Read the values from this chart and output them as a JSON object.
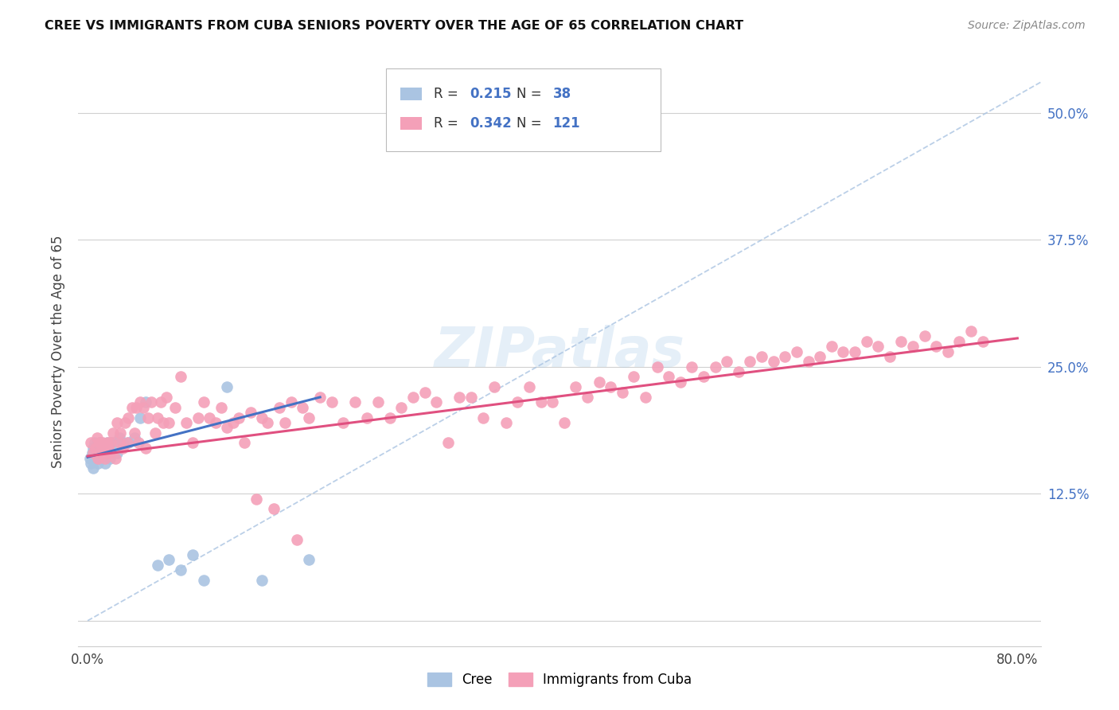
{
  "title": "CREE VS IMMIGRANTS FROM CUBA SENIORS POVERTY OVER THE AGE OF 65 CORRELATION CHART",
  "source": "Source: ZipAtlas.com",
  "ylabel": "Seniors Poverty Over the Age of 65",
  "cree_color": "#aac4e2",
  "cuba_color": "#f4a0b8",
  "cree_line_color": "#4472c4",
  "cuba_line_color": "#e05080",
  "diag_line_color": "#aac4e2",
  "legend_R_color": "#4472c4",
  "legend_N_color": "#4472c4",
  "cree_R": 0.215,
  "cree_N": 38,
  "cuba_R": 0.342,
  "cuba_N": 121,
  "ytick_vals": [
    0.0,
    0.125,
    0.25,
    0.375,
    0.5
  ],
  "ytick_labels": [
    "",
    "12.5%",
    "25.0%",
    "37.5%",
    "50.0%"
  ],
  "xtick_vals": [
    0.0,
    0.1,
    0.2,
    0.3,
    0.4,
    0.5,
    0.6,
    0.7,
    0.8
  ],
  "xtick_labels": [
    "0.0%",
    "",
    "",
    "",
    "",
    "",
    "",
    "",
    "80.0%"
  ],
  "cree_x": [
    0.002,
    0.003,
    0.004,
    0.005,
    0.005,
    0.006,
    0.007,
    0.008,
    0.009,
    0.01,
    0.01,
    0.011,
    0.012,
    0.013,
    0.014,
    0.015,
    0.015,
    0.016,
    0.017,
    0.018,
    0.019,
    0.02,
    0.022,
    0.025,
    0.027,
    0.03,
    0.035,
    0.04,
    0.045,
    0.05,
    0.06,
    0.07,
    0.08,
    0.09,
    0.1,
    0.12,
    0.15,
    0.19
  ],
  "cree_y": [
    0.16,
    0.155,
    0.165,
    0.17,
    0.15,
    0.175,
    0.165,
    0.17,
    0.155,
    0.175,
    0.16,
    0.175,
    0.165,
    0.17,
    0.165,
    0.17,
    0.155,
    0.165,
    0.175,
    0.165,
    0.16,
    0.175,
    0.175,
    0.165,
    0.18,
    0.175,
    0.175,
    0.18,
    0.2,
    0.215,
    0.055,
    0.06,
    0.05,
    0.065,
    0.04,
    0.23,
    0.04,
    0.06
  ],
  "cuba_x": [
    0.003,
    0.005,
    0.007,
    0.008,
    0.009,
    0.01,
    0.011,
    0.012,
    0.013,
    0.015,
    0.016,
    0.017,
    0.018,
    0.019,
    0.02,
    0.022,
    0.024,
    0.025,
    0.027,
    0.028,
    0.03,
    0.032,
    0.034,
    0.035,
    0.038,
    0.04,
    0.042,
    0.044,
    0.045,
    0.048,
    0.05,
    0.052,
    0.055,
    0.058,
    0.06,
    0.063,
    0.065,
    0.068,
    0.07,
    0.075,
    0.08,
    0.085,
    0.09,
    0.095,
    0.1,
    0.105,
    0.11,
    0.115,
    0.12,
    0.125,
    0.13,
    0.135,
    0.14,
    0.145,
    0.15,
    0.155,
    0.16,
    0.165,
    0.17,
    0.175,
    0.18,
    0.185,
    0.19,
    0.2,
    0.21,
    0.22,
    0.23,
    0.24,
    0.25,
    0.26,
    0.27,
    0.28,
    0.29,
    0.3,
    0.31,
    0.32,
    0.33,
    0.34,
    0.35,
    0.36,
    0.37,
    0.38,
    0.39,
    0.4,
    0.41,
    0.42,
    0.43,
    0.44,
    0.45,
    0.46,
    0.47,
    0.48,
    0.49,
    0.5,
    0.51,
    0.52,
    0.53,
    0.54,
    0.55,
    0.56,
    0.57,
    0.58,
    0.59,
    0.6,
    0.61,
    0.62,
    0.63,
    0.64,
    0.65,
    0.66,
    0.67,
    0.68,
    0.69,
    0.7,
    0.71,
    0.72,
    0.73,
    0.74,
    0.75,
    0.76,
    0.77
  ],
  "cuba_y": [
    0.175,
    0.165,
    0.17,
    0.18,
    0.16,
    0.175,
    0.165,
    0.17,
    0.175,
    0.16,
    0.165,
    0.175,
    0.17,
    0.165,
    0.175,
    0.185,
    0.16,
    0.195,
    0.175,
    0.185,
    0.17,
    0.195,
    0.175,
    0.2,
    0.21,
    0.185,
    0.21,
    0.175,
    0.215,
    0.21,
    0.17,
    0.2,
    0.215,
    0.185,
    0.2,
    0.215,
    0.195,
    0.22,
    0.195,
    0.21,
    0.24,
    0.195,
    0.175,
    0.2,
    0.215,
    0.2,
    0.195,
    0.21,
    0.19,
    0.195,
    0.2,
    0.175,
    0.205,
    0.12,
    0.2,
    0.195,
    0.11,
    0.21,
    0.195,
    0.215,
    0.08,
    0.21,
    0.2,
    0.22,
    0.215,
    0.195,
    0.215,
    0.2,
    0.215,
    0.2,
    0.21,
    0.22,
    0.225,
    0.215,
    0.175,
    0.22,
    0.22,
    0.2,
    0.23,
    0.195,
    0.215,
    0.23,
    0.215,
    0.215,
    0.195,
    0.23,
    0.22,
    0.235,
    0.23,
    0.225,
    0.24,
    0.22,
    0.25,
    0.24,
    0.235,
    0.25,
    0.24,
    0.25,
    0.255,
    0.245,
    0.255,
    0.26,
    0.255,
    0.26,
    0.265,
    0.255,
    0.26,
    0.27,
    0.265,
    0.265,
    0.275,
    0.27,
    0.26,
    0.275,
    0.27,
    0.28,
    0.27,
    0.265,
    0.275,
    0.285,
    0.275
  ],
  "cree_line_x0": 0.0,
  "cree_line_y0": 0.161,
  "cree_line_x1": 0.2,
  "cree_line_y1": 0.22,
  "cuba_line_x0": 0.0,
  "cuba_line_y0": 0.162,
  "cuba_line_x1": 0.8,
  "cuba_line_y1": 0.278
}
